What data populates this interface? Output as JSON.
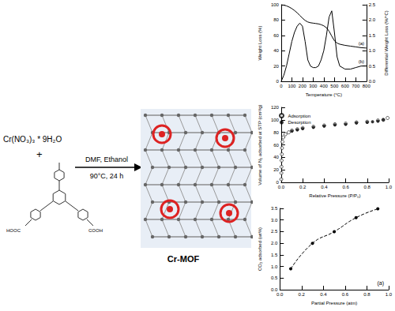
{
  "scheme": {
    "reactant": "Cr(NO₃)₃ * 9H₂O",
    "plus": "+",
    "ligand_groups": [
      "HOOC",
      "COOH"
    ],
    "conditions_above": "DMF, Ethanol",
    "conditions_below": "90°C, 24 h",
    "product": "Cr-MOF"
  },
  "chart_data": [
    {
      "type": "line",
      "x_label": "Temperature (°C)",
      "y_label": "Weight Loss (%)",
      "y2_label": "Differential Weight Loss (%/°C)",
      "x": [
        0,
        25,
        50,
        75,
        100,
        125,
        150,
        175,
        200,
        225,
        250,
        275,
        300,
        325,
        350,
        375,
        400,
        425,
        450,
        475,
        500,
        525,
        550,
        600,
        650,
        700,
        750,
        800
      ],
      "series": [
        {
          "name": "(a)",
          "color": "#000000",
          "line_style": "solid",
          "values": [
            100,
            99.5,
            98.5,
            97,
            95,
            92.5,
            89.5,
            86,
            82.5,
            79.5,
            77.5,
            76.5,
            76,
            75.5,
            75,
            74,
            72.5,
            70,
            65.5,
            59,
            53,
            50,
            48.5,
            47,
            46,
            45,
            44,
            43.5
          ]
        },
        {
          "name": "(b)",
          "color": "#000000",
          "line_style": "solid",
          "axis": "y2",
          "values": [
            0,
            0.2,
            0.5,
            0.9,
            1.3,
            1.6,
            1.8,
            1.9,
            1.8,
            1.3,
            0.7,
            0.5,
            0.45,
            0.45,
            0.5,
            0.7,
            1.0,
            1.5,
            2.1,
            2.3,
            1.6,
            0.8,
            0.5,
            0.4,
            0.4,
            0.45,
            0.5,
            0.5
          ]
        }
      ],
      "xlim": [
        0,
        800
      ],
      "xticks": [
        0,
        100,
        200,
        300,
        400,
        500,
        600,
        700,
        800
      ],
      "ylim": [
        0,
        100
      ],
      "yticks": [
        0,
        20,
        40,
        60,
        80,
        100
      ],
      "y2lim": [
        0,
        2.5
      ],
      "y2ticks": [
        {
          "value": 0,
          "label": "0.0"
        },
        0.5,
        {
          "value": 1,
          "label": "1.0"
        },
        1.5,
        {
          "value": 2,
          "label": "2.0"
        },
        2.5
      ],
      "grid": false
    },
    {
      "type": "scatter",
      "x_label": "Relative Pressure (P/P₀)",
      "y_label": "Volume of N₂ adsorbed at STP (cm³/g)",
      "series": [
        {
          "name": "Adsorption",
          "color": "#000000",
          "marker": "open_circle",
          "x": [
            0.001,
            0.002,
            0.003,
            0.004,
            0.006,
            0.008,
            0.012,
            0.02,
            0.04,
            0.07,
            0.1,
            0.15,
            0.2,
            0.3,
            0.4,
            0.5,
            0.6,
            0.7,
            0.8,
            0.9,
            0.95,
            0.99
          ],
          "values": [
            5,
            15,
            25,
            35,
            45,
            55,
            65,
            72,
            77,
            80,
            83,
            85,
            87,
            89,
            91,
            93,
            94,
            96,
            97,
            99,
            100,
            103
          ]
        },
        {
          "name": "Desorption",
          "color": "#000000",
          "marker": "circle",
          "x": [
            0.95,
            0.9,
            0.85,
            0.8,
            0.7,
            0.6,
            0.5,
            0.4,
            0.3,
            0.2,
            0.15,
            0.1
          ],
          "values": [
            100,
            98,
            97,
            96,
            95,
            93,
            92,
            90,
            88,
            86,
            84,
            82
          ]
        }
      ],
      "xlim": [
        0,
        1
      ],
      "xticks": [
        {
          "value": 0,
          "label": "0.0"
        },
        0.2,
        0.4,
        0.6,
        0.8,
        {
          "value": 1,
          "label": "1.0"
        }
      ],
      "ylim": [
        0,
        120
      ],
      "yticks": [
        0,
        20,
        40,
        60,
        80,
        100,
        120
      ],
      "legend": "upper left",
      "grid": false
    },
    {
      "type": "line",
      "x_label": "Partial Pressure (atm)",
      "y_label": "CO₂ adsorbed (wt%)",
      "annotation": "(a)",
      "series": [
        {
          "name": "CO₂",
          "color": "#000000",
          "marker": "circle",
          "line_style": "dashed",
          "x": [
            0.1,
            0.3,
            0.5,
            0.7,
            0.9
          ],
          "values": [
            0.9,
            2.0,
            2.5,
            3.1,
            3.48
          ]
        }
      ],
      "xlim": [
        0,
        1
      ],
      "xticks": [
        {
          "value": 0,
          "label": "0.0"
        },
        0.2,
        0.4,
        0.6,
        0.8,
        {
          "value": 1,
          "label": "1.0"
        }
      ],
      "ylim": [
        0,
        3.5
      ],
      "yticks": [
        {
          "value": 0,
          "label": "0.0"
        },
        0.5,
        {
          "value": 1,
          "label": "1.0"
        },
        1.5,
        {
          "value": 2,
          "label": "2.0"
        },
        2.5,
        {
          "value": 3,
          "label": "3.0"
        },
        3.5
      ],
      "grid": false
    }
  ]
}
